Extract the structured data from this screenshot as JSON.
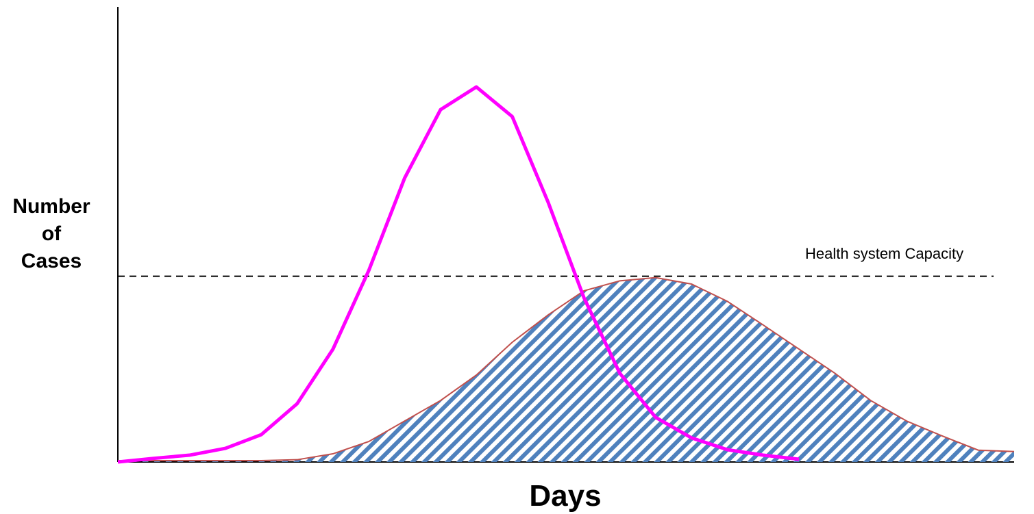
{
  "chart_data": {
    "type": "line",
    "y_label": "Number of Cases",
    "x_label": "Days",
    "xlim": [
      0,
      100
    ],
    "ylim": [
      0,
      100
    ],
    "x": [
      0,
      4,
      8,
      12,
      16,
      20,
      24,
      28,
      32,
      36,
      40,
      44,
      48,
      52,
      56,
      60,
      64,
      68,
      72,
      76,
      80,
      84,
      88,
      92,
      96,
      100
    ],
    "series": [
      {
        "color": "#ff00ff",
        "fill": false,
        "values": [
          0,
          0.8,
          1.5,
          3.0,
          6.0,
          12.8,
          24.8,
          42.1,
          62.4,
          77.4,
          82.4,
          75.9,
          57.1,
          36.1,
          19.5,
          9.8,
          5.3,
          2.7,
          1.5,
          0.6,
          null,
          null,
          null,
          null,
          null,
          null
        ]
      },
      {
        "color": "#4f81bd",
        "line_color": "#c0504d",
        "fill": true,
        "values": [
          0.3,
          0.3,
          0.3,
          0.3,
          0.3,
          0.5,
          1.8,
          4.5,
          9.0,
          13.5,
          19.1,
          26.3,
          32.3,
          37.6,
          39.8,
          40.5,
          39.1,
          35.3,
          30.1,
          24.8,
          19.5,
          13.5,
          9.0,
          5.7,
          2.6,
          2.3
        ]
      }
    ],
    "capacity": {
      "value": 40.8,
      "label": "Health system Capacity"
    }
  }
}
